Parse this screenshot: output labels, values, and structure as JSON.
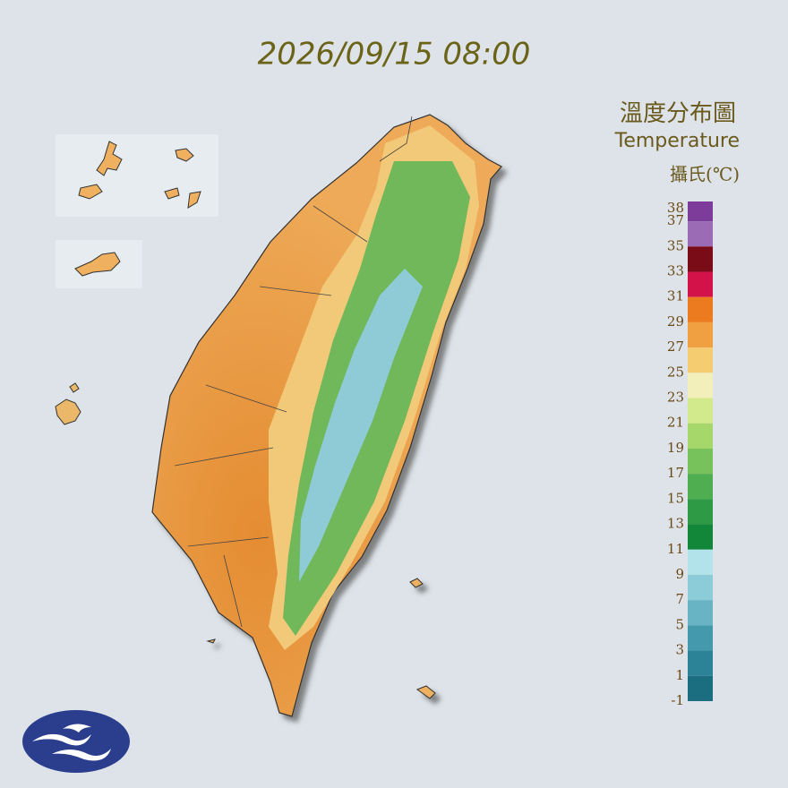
{
  "title": "2026/09/15 08:00",
  "legend": {
    "title": "溫度分布圖",
    "subtitle": "Temperature",
    "unit": "攝氏(℃)",
    "ticks": [
      38,
      37,
      35,
      33,
      31,
      29,
      27,
      25,
      23,
      21,
      19,
      17,
      15,
      13,
      11,
      9,
      7,
      5,
      3,
      1,
      -1
    ],
    "colors": [
      "#7e3c9a",
      "#9b6bb5",
      "#7a0c18",
      "#d3124a",
      "#ec7a1e",
      "#f0a040",
      "#f5cc70",
      "#f2efbb",
      "#d2ea8c",
      "#a5d76a",
      "#78c25c",
      "#4fae50",
      "#2f9a45",
      "#12873a",
      "#b2e3ea",
      "#8ccbd8",
      "#68b3c4",
      "#4599ac",
      "#2c8296",
      "#1b6e80"
    ]
  }
}
